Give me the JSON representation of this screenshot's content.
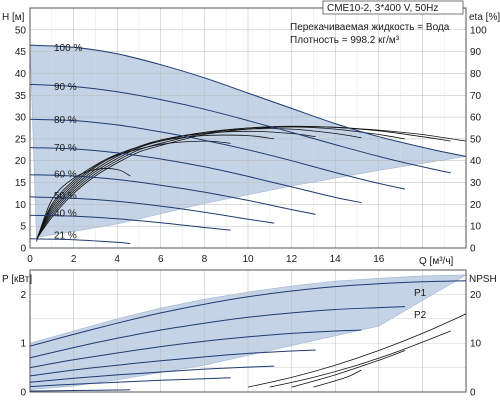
{
  "chart_data": [
    {
      "type": "line",
      "title": "CME10-2, 3*400 V, 50Hz",
      "annotations": [
        "Перекачиваемая жидкость = Вода",
        "Плотность = 998.2 кг/м³"
      ],
      "xlabel": "Q [м³/ч]",
      "ylabel": "H [м]",
      "ylabel_right": "eta [%]",
      "xlim": [
        0,
        20
      ],
      "ylim": [
        0,
        55
      ],
      "ylim_right": [
        0,
        110
      ],
      "x_ticks": [
        0,
        2,
        4,
        6,
        8,
        10,
        12,
        14,
        16
      ],
      "y_ticks": [
        0,
        5,
        10,
        15,
        20,
        25,
        30,
        35,
        40,
        45,
        50
      ],
      "y_ticks_right": [
        0,
        10,
        20,
        30,
        40,
        50,
        60,
        70,
        80,
        90,
        100
      ],
      "grid": true,
      "speed_labels": [
        {
          "text": "100 %",
          "x": 1.1,
          "y": 46
        },
        {
          "text": "90 %",
          "x": 1.1,
          "y": 37
        },
        {
          "text": "80 %",
          "x": 1.1,
          "y": 29.5
        },
        {
          "text": "70 %",
          "x": 1.1,
          "y": 23
        },
        {
          "text": "60 %",
          "x": 1.1,
          "y": 17
        },
        {
          "text": "50 %",
          "x": 1.1,
          "y": 12
        },
        {
          "text": "40 %",
          "x": 1.1,
          "y": 8
        },
        {
          "text": "21 %",
          "x": 1.1,
          "y": 3
        }
      ],
      "envelope": {
        "x": [
          0,
          2,
          4,
          6,
          8,
          10,
          12,
          14,
          16,
          18.5,
          20,
          16,
          12,
          8,
          4,
          2,
          0.3
        ],
        "y": [
          46.5,
          46,
          44.5,
          42,
          39,
          35.5,
          32,
          28.5,
          25.5,
          22.5,
          21,
          17.8,
          14.2,
          10.2,
          5.5,
          3.8,
          2.5
        ]
      },
      "series": [
        {
          "x": [
            0,
            2,
            4,
            6,
            8,
            10,
            12,
            14,
            16,
            18,
            19.3
          ],
          "values": [
            37.5,
            37,
            35.8,
            34,
            31.8,
            29.2,
            26.5,
            23.7,
            21,
            18.6,
            17.2
          ]
        },
        {
          "x": [
            0,
            2,
            4,
            6,
            8,
            10,
            12,
            14,
            16,
            17.2
          ],
          "values": [
            29.5,
            29.2,
            28.2,
            26.6,
            24.7,
            22.5,
            20,
            17.3,
            14.8,
            13.5
          ]
        },
        {
          "x": [
            0,
            2,
            4,
            6,
            8,
            10,
            12,
            14,
            15.2
          ],
          "values": [
            23,
            22.7,
            21.8,
            20.4,
            18.6,
            16.4,
            14,
            11.6,
            10.4
          ]
        },
        {
          "x": [
            0,
            2,
            4,
            6,
            8,
            10,
            12,
            13.1
          ],
          "values": [
            16.8,
            16.5,
            15.7,
            14.4,
            12.8,
            10.9,
            8.8,
            7.7
          ]
        },
        {
          "x": [
            0,
            2,
            4,
            6,
            8,
            10,
            11.2
          ],
          "values": [
            11.7,
            11.4,
            10.7,
            9.6,
            8.2,
            6.6,
            5.7
          ]
        },
        {
          "x": [
            0,
            2,
            4,
            6,
            8,
            9.2
          ],
          "values": [
            7.5,
            7.3,
            6.7,
            5.8,
            4.7,
            4.1
          ]
        },
        {
          "x": [
            0,
            2,
            4,
            4.6
          ],
          "values": [
            2.1,
            1.9,
            1.3,
            1
          ]
        }
      ],
      "efficiency_series_right_axis": [
        {
          "x": [
            0.3,
            1,
            2,
            3,
            4,
            5,
            6,
            8,
            10,
            12,
            14,
            16,
            18,
            20
          ],
          "values": [
            4,
            14,
            25,
            33,
            39,
            44,
            47,
            52,
            54.5,
            55.5,
            55.3,
            54,
            52,
            49
          ]
        },
        {
          "x": [
            0.3,
            1,
            2,
            3,
            4,
            5,
            6,
            8,
            10,
            12,
            14,
            16,
            18,
            19.3
          ],
          "values": [
            4,
            15,
            26,
            34,
            40,
            45,
            48,
            52.5,
            55,
            55.8,
            55.3,
            53.7,
            51,
            49
          ]
        },
        {
          "x": [
            0.3,
            1,
            2,
            3,
            4,
            5,
            6,
            8,
            10,
            12,
            14,
            16,
            17.2
          ],
          "values": [
            4,
            16,
            27,
            35,
            41,
            46,
            49,
            53,
            55,
            55.5,
            54.5,
            52,
            50
          ]
        },
        {
          "x": [
            0.3,
            1,
            2,
            3,
            4,
            5,
            6,
            8,
            10,
            12,
            14,
            15.2
          ],
          "values": [
            4,
            17,
            28,
            36,
            42,
            46.5,
            49.5,
            53,
            54.5,
            54.5,
            52.5,
            50.5
          ]
        },
        {
          "x": [
            0.3,
            1,
            2,
            3,
            4,
            6,
            8,
            10,
            12,
            13.1
          ],
          "values": [
            4,
            18,
            29,
            37,
            42.5,
            49.5,
            52.5,
            53.5,
            52.5,
            51
          ]
        },
        {
          "x": [
            0.3,
            1,
            2,
            3,
            4,
            6,
            8,
            10,
            11.2
          ],
          "values": [
            4,
            19,
            30,
            37.5,
            43,
            49,
            51.5,
            51.5,
            50
          ]
        },
        {
          "x": [
            0.3,
            1,
            2,
            3,
            4,
            6,
            8,
            9.2
          ],
          "values": [
            4,
            20,
            31,
            38,
            42.5,
            47.5,
            49,
            48
          ]
        },
        {
          "x": [
            0.3,
            1,
            2,
            3,
            4,
            4.6
          ],
          "values": [
            3,
            22,
            32,
            36,
            36,
            33
          ]
        }
      ]
    },
    {
      "type": "line",
      "ylabel": "P [кВт]",
      "ylabel_right": "NPSH [м]",
      "xlim": [
        0,
        20
      ],
      "ylim": [
        0,
        2.5
      ],
      "ylim_right": [
        0,
        25
      ],
      "y_ticks": [
        0,
        1,
        2
      ],
      "y_ticks_right": [
        0,
        10,
        20
      ],
      "grid": true,
      "series_labels": [
        "P1",
        "P2"
      ],
      "envelope": {
        "x": [
          0,
          2,
          4,
          6,
          8,
          10,
          12,
          14,
          16,
          18,
          20,
          16,
          12,
          8,
          4,
          2,
          0
        ],
        "y": [
          1,
          1.25,
          1.5,
          1.72,
          1.9,
          2.05,
          2.17,
          2.27,
          2.33,
          2.38,
          2.4,
          1.35,
          0.95,
          0.55,
          0.25,
          0.12,
          0.05
        ]
      },
      "series": [
        {
          "x": [
            0,
            2,
            4,
            6,
            8,
            10,
            12,
            14,
            16,
            18,
            20
          ],
          "values": [
            0.94,
            1.18,
            1.41,
            1.62,
            1.8,
            1.95,
            2.07,
            2.16,
            2.22,
            2.26,
            2.28
          ]
        },
        {
          "x": [
            0,
            2,
            4,
            6,
            8,
            10,
            12,
            14,
            16,
            17.2
          ],
          "values": [
            0.7,
            0.91,
            1.1,
            1.27,
            1.41,
            1.53,
            1.62,
            1.69,
            1.73,
            1.75
          ]
        },
        {
          "x": [
            0,
            2,
            4,
            6,
            8,
            10,
            12,
            14,
            15.2
          ],
          "values": [
            0.5,
            0.66,
            0.8,
            0.93,
            1.04,
            1.13,
            1.2,
            1.25,
            1.27
          ]
        },
        {
          "x": [
            0,
            2,
            4,
            6,
            8,
            10,
            12,
            13.1
          ],
          "values": [
            0.33,
            0.45,
            0.55,
            0.64,
            0.72,
            0.79,
            0.84,
            0.86
          ]
        },
        {
          "x": [
            0,
            2,
            4,
            6,
            8,
            10,
            11.2
          ],
          "values": [
            0.2,
            0.28,
            0.35,
            0.41,
            0.47,
            0.51,
            0.53
          ]
        },
        {
          "x": [
            0,
            2,
            4,
            6,
            8,
            9.2
          ],
          "values": [
            0.11,
            0.16,
            0.2,
            0.24,
            0.27,
            0.29
          ]
        },
        {
          "x": [
            0,
            2,
            4,
            4.6
          ],
          "values": [
            0.02,
            0.03,
            0.04,
            0.045
          ]
        }
      ],
      "npsh_series_right_axis": [
        {
          "x": [
            10,
            12,
            14,
            16,
            18,
            20
          ],
          "values": [
            1,
            3,
            5.5,
            8.5,
            12,
            16
          ]
        },
        {
          "x": [
            11,
            13,
            15,
            17,
            19.3
          ],
          "values": [
            1,
            3,
            5.5,
            8.5,
            12.5
          ]
        },
        {
          "x": [
            12,
            14,
            16,
            17.2
          ],
          "values": [
            1,
            3.5,
            6.5,
            8.5
          ]
        },
        {
          "x": [
            13,
            14.5,
            15.2
          ],
          "values": [
            1,
            3,
            4.5
          ]
        }
      ]
    }
  ]
}
